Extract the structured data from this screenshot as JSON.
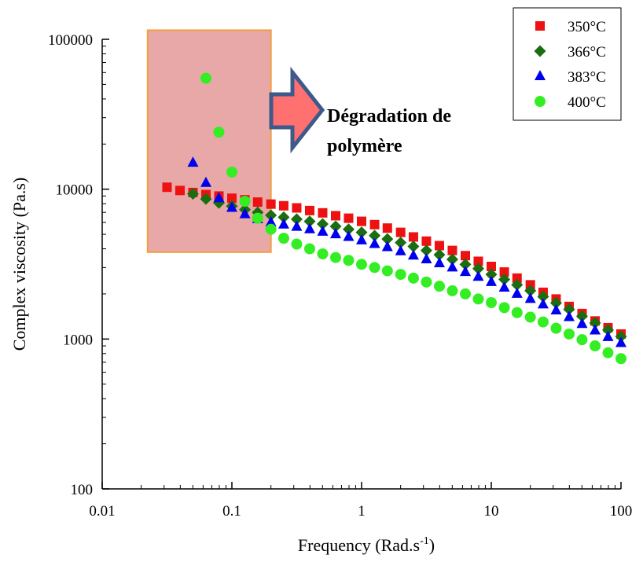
{
  "chart_data": {
    "type": "scatter",
    "title": "",
    "xlabel": "Frequency (Rad.s",
    "xlabel_superscript": "-1",
    "xlabel_suffix": ")",
    "ylabel": "Complex viscosity (Pa.s)",
    "xscale": "log",
    "yscale": "log",
    "xlim": [
      0.01,
      100
    ],
    "ylim": [
      100,
      100000
    ],
    "x_ticks": [
      {
        "value": 0.01,
        "label": "0.01"
      },
      {
        "value": 0.1,
        "label": "0.1"
      },
      {
        "value": 1,
        "label": "1"
      },
      {
        "value": 10,
        "label": "10"
      },
      {
        "value": 100,
        "label": "100"
      }
    ],
    "y_ticks": [
      {
        "value": 100,
        "label": "100"
      },
      {
        "value": 1000,
        "label": "1000"
      },
      {
        "value": 10000,
        "label": "10000"
      },
      {
        "value": 100000,
        "label": "100000"
      }
    ],
    "legend_position": "top-right",
    "series": [
      {
        "name": "350°C",
        "marker": "square",
        "color": "#ee1111",
        "points": [
          [
            0.0316,
            10300
          ],
          [
            0.0398,
            9800
          ],
          [
            0.0501,
            9500
          ],
          [
            0.0631,
            9200
          ],
          [
            0.0794,
            9000
          ],
          [
            0.1,
            8700
          ],
          [
            0.126,
            8500
          ],
          [
            0.158,
            8200
          ],
          [
            0.2,
            7950
          ],
          [
            0.251,
            7750
          ],
          [
            0.316,
            7500
          ],
          [
            0.398,
            7200
          ],
          [
            0.501,
            6950
          ],
          [
            0.631,
            6650
          ],
          [
            0.794,
            6400
          ],
          [
            1,
            6100
          ],
          [
            1.26,
            5800
          ],
          [
            1.58,
            5500
          ],
          [
            2,
            5150
          ],
          [
            2.51,
            4800
          ],
          [
            3.16,
            4500
          ],
          [
            3.98,
            4200
          ],
          [
            5.01,
            3900
          ],
          [
            6.31,
            3600
          ],
          [
            7.94,
            3300
          ],
          [
            10,
            3050
          ],
          [
            12.6,
            2800
          ],
          [
            15.8,
            2550
          ],
          [
            20,
            2300
          ],
          [
            25.1,
            2050
          ],
          [
            31.6,
            1850
          ],
          [
            39.8,
            1650
          ],
          [
            50.1,
            1480
          ],
          [
            63.1,
            1320
          ],
          [
            79.4,
            1190
          ],
          [
            100,
            1080
          ]
        ]
      },
      {
        "name": "366°C",
        "marker": "diamond",
        "color": "#1a6e10",
        "points": [
          [
            0.0501,
            9300
          ],
          [
            0.0631,
            8600
          ],
          [
            0.0794,
            8100
          ],
          [
            0.1,
            7700
          ],
          [
            0.126,
            7300
          ],
          [
            0.158,
            7000
          ],
          [
            0.2,
            6700
          ],
          [
            0.251,
            6500
          ],
          [
            0.316,
            6300
          ],
          [
            0.398,
            6100
          ],
          [
            0.501,
            5850
          ],
          [
            0.631,
            5650
          ],
          [
            0.794,
            5400
          ],
          [
            1,
            5150
          ],
          [
            1.26,
            4900
          ],
          [
            1.58,
            4650
          ],
          [
            2,
            4400
          ],
          [
            2.51,
            4150
          ],
          [
            3.16,
            3900
          ],
          [
            3.98,
            3650
          ],
          [
            5.01,
            3400
          ],
          [
            6.31,
            3150
          ],
          [
            7.94,
            2950
          ],
          [
            10,
            2700
          ],
          [
            12.6,
            2500
          ],
          [
            15.8,
            2300
          ],
          [
            20,
            2100
          ],
          [
            25.1,
            1920
          ],
          [
            31.6,
            1740
          ],
          [
            39.8,
            1580
          ],
          [
            50.1,
            1420
          ],
          [
            63.1,
            1280
          ],
          [
            79.4,
            1150
          ],
          [
            100,
            1040
          ]
        ]
      },
      {
        "name": "383°C",
        "marker": "triangle",
        "color": "#0000ee",
        "points": [
          [
            0.0501,
            15000
          ],
          [
            0.0631,
            11000
          ],
          [
            0.0794,
            8700
          ],
          [
            0.1,
            7500
          ],
          [
            0.126,
            6800
          ],
          [
            0.158,
            6300
          ],
          [
            0.2,
            6000
          ],
          [
            0.251,
            5800
          ],
          [
            0.316,
            5600
          ],
          [
            0.398,
            5400
          ],
          [
            0.501,
            5200
          ],
          [
            0.631,
            5000
          ],
          [
            0.794,
            4800
          ],
          [
            1,
            4550
          ],
          [
            1.26,
            4300
          ],
          [
            1.58,
            4100
          ],
          [
            2,
            3850
          ],
          [
            2.51,
            3600
          ],
          [
            3.16,
            3400
          ],
          [
            3.98,
            3200
          ],
          [
            5.01,
            3000
          ],
          [
            6.31,
            2800
          ],
          [
            7.94,
            2600
          ],
          [
            10,
            2400
          ],
          [
            12.6,
            2200
          ],
          [
            15.8,
            2000
          ],
          [
            20,
            1850
          ],
          [
            25.1,
            1700
          ],
          [
            31.6,
            1550
          ],
          [
            39.8,
            1400
          ],
          [
            50.1,
            1260
          ],
          [
            63.1,
            1140
          ],
          [
            79.4,
            1030
          ],
          [
            100,
            940
          ]
        ]
      },
      {
        "name": "400°C",
        "marker": "circle",
        "color": "#33ee22",
        "points": [
          [
            0.0631,
            55000
          ],
          [
            0.0794,
            24000
          ],
          [
            0.1,
            13000
          ],
          [
            0.126,
            8300
          ],
          [
            0.158,
            6400
          ],
          [
            0.2,
            5400
          ],
          [
            0.251,
            4700
          ],
          [
            0.316,
            4300
          ],
          [
            0.398,
            4000
          ],
          [
            0.501,
            3700
          ],
          [
            0.631,
            3500
          ],
          [
            0.794,
            3350
          ],
          [
            1,
            3150
          ],
          [
            1.26,
            3000
          ],
          [
            1.58,
            2850
          ],
          [
            2,
            2700
          ],
          [
            2.51,
            2550
          ],
          [
            3.16,
            2400
          ],
          [
            3.98,
            2250
          ],
          [
            5.01,
            2100
          ],
          [
            6.31,
            2000
          ],
          [
            7.94,
            1850
          ],
          [
            10,
            1750
          ],
          [
            12.6,
            1620
          ],
          [
            15.8,
            1500
          ],
          [
            20,
            1400
          ],
          [
            25.1,
            1300
          ],
          [
            31.6,
            1180
          ],
          [
            39.8,
            1080
          ],
          [
            50.1,
            990
          ],
          [
            63.1,
            900
          ],
          [
            79.4,
            810
          ],
          [
            100,
            740
          ]
        ]
      }
    ],
    "annotation": {
      "text_line1": "Dégradation de",
      "text_line2": "polymère",
      "box_color": "#e8a8a8",
      "box_border_color": "#f0a040",
      "arrow_fill": "#ff7070",
      "arrow_stroke": "#3d5a8a",
      "box_x_range": [
        0.0224,
        0.2
      ],
      "box_y_range": [
        3800,
        115000
      ]
    }
  }
}
